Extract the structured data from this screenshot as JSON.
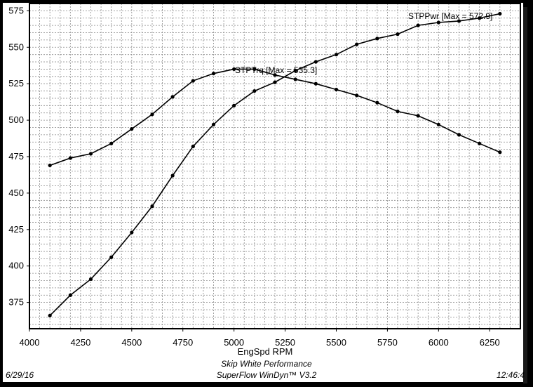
{
  "chart_data": {
    "type": "line",
    "xlabel": "EngSpd RPM",
    "ylabel": "",
    "xlim": [
      4000,
      6400
    ],
    "ylim": [
      357,
      580
    ],
    "x_ticks": [
      4000,
      4250,
      4500,
      4750,
      5000,
      5250,
      5500,
      5750,
      6000,
      6250
    ],
    "y_ticks": [
      375,
      400,
      425,
      450,
      475,
      500,
      525,
      550,
      575
    ],
    "grid": true,
    "series": [
      {
        "name": "STPTrq",
        "label": "STPTrq [Max = 535.3]",
        "x": [
          4100,
          4200,
          4300,
          4400,
          4500,
          4600,
          4700,
          4800,
          4900,
          5000,
          5100,
          5200,
          5300,
          5400,
          5500,
          5600,
          5700,
          5800,
          5900,
          6000,
          6100,
          6200,
          6300
        ],
        "values": [
          469,
          474,
          477,
          484,
          494,
          504,
          516,
          527,
          532,
          535,
          535,
          531,
          528,
          525,
          521,
          517,
          512,
          506,
          503,
          497,
          490,
          484,
          478
        ]
      },
      {
        "name": "STPPwr",
        "label": "STPPwr [Max = 572.9]",
        "x": [
          4100,
          4200,
          4300,
          4400,
          4500,
          4600,
          4700,
          4800,
          4900,
          5000,
          5100,
          5200,
          5300,
          5400,
          5500,
          5600,
          5700,
          5800,
          5900,
          6000,
          6100,
          6200,
          6300
        ],
        "values": [
          366,
          380,
          391,
          406,
          423,
          441,
          462,
          482,
          497,
          510,
          520,
          526,
          534,
          540,
          545,
          552,
          556,
          559,
          565,
          567,
          568,
          570,
          573
        ]
      }
    ]
  },
  "footer": {
    "date": "6/29/16",
    "company": "Skip White Performance",
    "software": "SuperFlow WinDyn™ V3.2",
    "time": "12:46:4"
  }
}
